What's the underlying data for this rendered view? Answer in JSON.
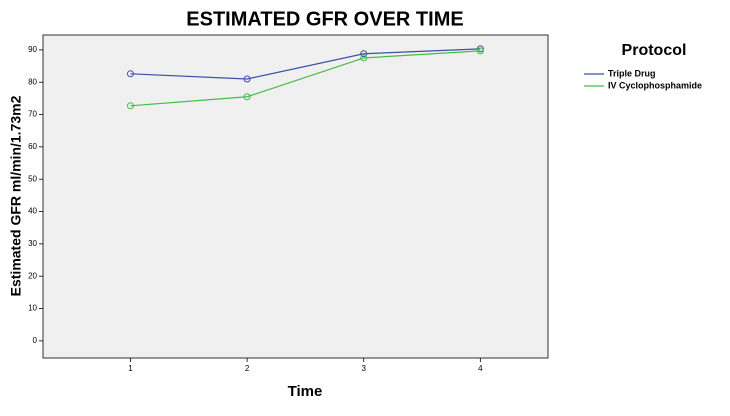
{
  "chart_data": {
    "type": "line",
    "title": "ESTIMATED GFR OVER TIME",
    "x_label": "Time",
    "y_label": "Estimated GFR ml/min/1.73m2",
    "x": [
      1,
      2,
      3,
      4
    ],
    "series": [
      {
        "name": "Triple Drug",
        "color": "#3d4fa6",
        "values": [
          82.6,
          81.0,
          88.8,
          90.3
        ]
      },
      {
        "name": "IV Cyclophosphamide",
        "color": "#3fbf45",
        "values": [
          72.7,
          75.5,
          87.5,
          89.7
        ]
      }
    ],
    "xlim": [
      0.25,
      4.58
    ],
    "xticks": [
      1,
      2,
      3,
      4
    ],
    "ylim": [
      -5.3,
      94.6
    ],
    "yticks": [
      0,
      10,
      20,
      30,
      40,
      50,
      60,
      70,
      80,
      90
    ],
    "legend_title": "Protocol",
    "legend_position": "right",
    "plot_background": "#f0f0f0",
    "grid": false
  }
}
